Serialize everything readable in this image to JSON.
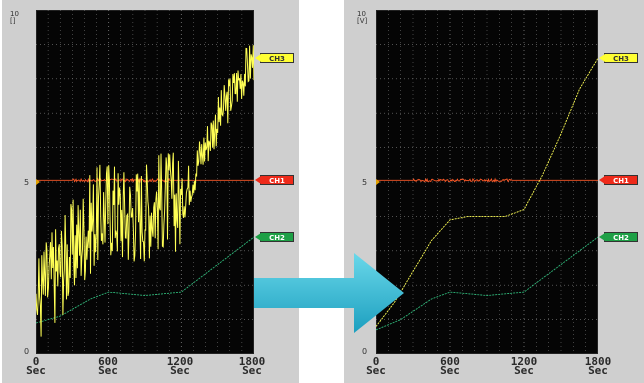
{
  "colors": {
    "background": "#050505",
    "ch1": "#ff5a28",
    "ch2": "#2fb87a",
    "ch3": "#ffff55",
    "grid": "#808080",
    "arrow": "#25b9d4"
  },
  "panels": [
    {
      "axis_top": "10",
      "axis_unit": "[]",
      "y_mid_label": "5",
      "y_min_label": "0",
      "x_ticks": [
        {
          "value": "0",
          "unit": "Sec"
        },
        {
          "value": "600",
          "unit": "Sec"
        },
        {
          "value": "1200",
          "unit": "Sec"
        },
        {
          "value": "1800",
          "unit": "Sec"
        }
      ],
      "tags": [
        {
          "label": "CH3",
          "color": "#ffff33",
          "text_color": "#333333"
        },
        {
          "label": "CH1",
          "color": "#ee2a1a",
          "text_color": "#ffffff"
        },
        {
          "label": "CH2",
          "color": "#1ea046",
          "text_color": "#ffffff"
        }
      ]
    },
    {
      "axis_top": "10",
      "axis_unit": "[V]",
      "y_mid_label": "5",
      "y_min_label": "0",
      "x_ticks": [
        {
          "value": "0",
          "unit": "Sec"
        },
        {
          "value": "600",
          "unit": "Sec"
        },
        {
          "value": "1200",
          "unit": "Sec"
        },
        {
          "value": "1800",
          "unit": "Sec"
        }
      ],
      "tags": [
        {
          "label": "CH3",
          "color": "#ffff33",
          "text_color": "#333333"
        },
        {
          "label": "CH1",
          "color": "#ee2a1a",
          "text_color": "#ffffff"
        },
        {
          "label": "CH2",
          "color": "#1ea046",
          "text_color": "#ffffff"
        }
      ]
    }
  ],
  "chart_data": [
    {
      "type": "line",
      "noisy": true,
      "xlim": [
        0,
        1800
      ],
      "ylim": [
        0,
        10
      ],
      "series": [
        {
          "name": "CH1",
          "x": [
            0,
            600,
            1200,
            1800
          ],
          "y": [
            5.05,
            5.05,
            5.05,
            5.05
          ]
        },
        {
          "name": "CH2",
          "x": [
            0,
            200,
            450,
            600,
            900,
            1200,
            1500,
            1800
          ],
          "y": [
            0.9,
            1.1,
            1.6,
            1.8,
            1.7,
            1.8,
            2.6,
            3.4
          ]
        },
        {
          "name": "CH3",
          "x": [
            0,
            150,
            300,
            450,
            600,
            750,
            900,
            1050,
            1200,
            1350,
            1500,
            1650,
            1800
          ],
          "y": [
            1.6,
            2.3,
            3.0,
            3.8,
            4.3,
            4.0,
            4.2,
            4.5,
            4.4,
            5.7,
            6.8,
            7.8,
            8.6
          ]
        }
      ]
    },
    {
      "type": "line",
      "noisy": false,
      "xlim": [
        0,
        1800
      ],
      "ylim": [
        0,
        10
      ],
      "series": [
        {
          "name": "CH1",
          "x": [
            0,
            600,
            1200,
            1800
          ],
          "y": [
            5.05,
            5.05,
            5.05,
            5.05
          ]
        },
        {
          "name": "CH2",
          "x": [
            0,
            200,
            450,
            600,
            900,
            1200,
            1500,
            1800
          ],
          "y": [
            0.7,
            1.0,
            1.6,
            1.8,
            1.7,
            1.8,
            2.6,
            3.4
          ]
        },
        {
          "name": "CH3",
          "x": [
            0,
            150,
            300,
            450,
            600,
            750,
            900,
            1050,
            1200,
            1350,
            1500,
            1650,
            1800
          ],
          "y": [
            0.8,
            1.5,
            2.4,
            3.3,
            3.9,
            4.0,
            4.0,
            4.0,
            4.2,
            5.2,
            6.4,
            7.7,
            8.6
          ]
        }
      ]
    }
  ]
}
